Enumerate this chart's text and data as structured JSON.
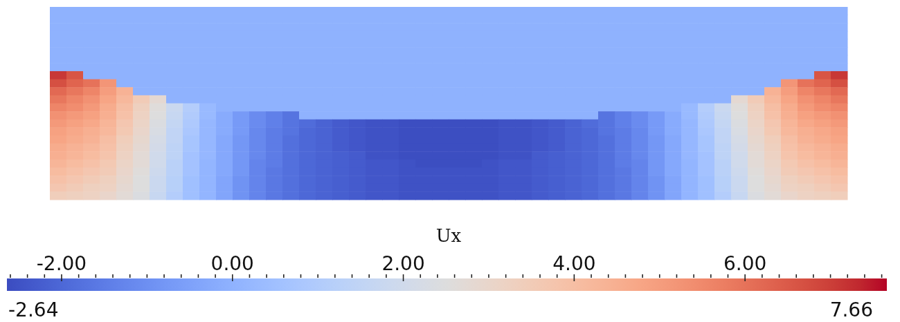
{
  "chart_data": {
    "type": "heatmap",
    "clabel": "Ux",
    "annotations": [
      "-2.64",
      "7.66"
    ],
    "categories": [
      null,
      null,
      null,
      null,
      null,
      null,
      null,
      null,
      null,
      null,
      null,
      null,
      null,
      null,
      null,
      null,
      null,
      null,
      null,
      null,
      null,
      null,
      null,
      null,
      null,
      null,
      null,
      null,
      null,
      null,
      null,
      null,
      null,
      null,
      null,
      null,
      null,
      null,
      null,
      null,
      null,
      null,
      null,
      null,
      null,
      null,
      null,
      null
    ],
    "y_categories": [
      null,
      null,
      null,
      null,
      null,
      null,
      null,
      null,
      null,
      null,
      null,
      null,
      null,
      null,
      null,
      null,
      null,
      null,
      null,
      null,
      null,
      null,
      null,
      null
    ],
    "cells": [
      [
        0,
        0,
        0,
        0,
        0,
        0,
        0,
        0,
        0,
        0,
        0,
        0,
        0,
        0,
        0,
        0,
        0,
        0,
        0,
        0,
        0,
        0,
        0,
        0,
        0,
        0,
        0,
        0,
        0,
        0,
        0,
        0,
        0,
        0,
        0,
        0,
        0,
        0,
        0,
        0,
        0,
        0,
        0,
        0,
        0,
        0,
        0,
        0
      ],
      [
        0,
        0,
        0,
        0,
        0,
        0,
        0,
        0,
        0,
        0,
        0,
        0,
        0,
        0,
        0,
        0,
        0,
        0,
        0,
        0,
        0,
        0,
        0,
        0,
        0,
        0,
        0,
        0,
        0,
        0,
        0,
        0,
        0,
        0,
        0,
        0,
        0,
        0,
        0,
        0,
        0,
        0,
        0,
        0,
        0,
        0,
        0,
        0
      ],
      [
        0,
        0,
        0,
        0,
        0,
        0,
        0,
        0,
        0,
        0,
        0,
        0,
        0,
        0,
        0,
        0,
        0,
        0,
        0,
        0,
        0,
        0,
        0,
        0,
        0,
        0,
        0,
        0,
        0,
        0,
        0,
        0,
        0,
        0,
        0,
        0,
        0,
        0,
        0,
        0,
        0,
        0,
        0,
        0,
        0,
        0,
        0,
        0
      ],
      [
        0,
        0,
        0,
        0,
        0,
        0,
        0,
        0,
        0,
        0,
        0,
        0,
        0,
        0,
        0,
        0,
        0,
        0,
        0,
        0,
        0,
        0,
        0,
        0,
        0,
        0,
        0,
        0,
        0,
        0,
        0,
        0,
        0,
        0,
        0,
        0,
        0,
        0,
        0,
        0,
        0,
        0,
        0,
        0,
        0,
        0,
        0,
        0
      ],
      [
        0,
        0,
        0,
        0,
        0,
        0,
        0,
        0,
        0,
        0,
        0,
        0,
        0,
        0,
        0,
        0,
        0,
        0,
        0,
        0,
        0,
        0,
        0,
        0,
        0,
        0,
        0,
        0,
        0,
        0,
        0,
        0,
        0,
        0,
        0,
        0,
        0,
        0,
        0,
        0,
        0,
        0,
        0,
        0,
        0,
        0,
        0,
        0
      ],
      [
        0,
        0,
        0,
        0,
        0,
        0,
        0,
        0,
        0,
        0,
        0,
        0,
        0,
        0,
        0,
        0,
        0,
        0,
        0,
        0,
        0,
        0,
        0,
        0,
        0,
        0,
        0,
        0,
        0,
        0,
        0,
        0,
        0,
        0,
        0,
        0,
        0,
        0,
        0,
        0,
        0,
        0,
        0,
        0,
        0,
        0,
        0,
        0
      ],
      [
        0,
        0,
        0,
        0,
        0,
        0,
        0,
        0,
        0,
        0,
        0,
        0,
        0,
        0,
        0,
        0,
        0,
        0,
        0,
        0,
        0,
        0,
        0,
        0,
        0,
        0,
        0,
        0,
        0,
        0,
        0,
        0,
        0,
        0,
        0,
        0,
        0,
        0,
        0,
        0,
        0,
        0,
        0,
        0,
        0,
        0,
        0,
        0
      ],
      [
        0,
        0,
        0,
        0,
        0,
        0,
        0,
        0,
        0,
        0,
        0,
        0,
        0,
        0,
        0,
        0,
        0,
        0,
        0,
        0,
        0,
        0,
        0,
        0,
        0,
        0,
        0,
        0,
        0,
        0,
        0,
        0,
        0,
        0,
        0,
        0,
        0,
        0,
        0,
        0,
        0,
        0,
        0,
        0,
        0,
        0,
        0,
        0
      ],
      [
        7.1,
        6.6,
        0,
        0,
        0,
        0,
        0,
        0,
        0,
        0,
        0,
        0,
        0,
        0,
        0,
        0,
        0,
        0,
        0,
        0,
        0,
        0,
        0,
        0,
        0,
        0,
        0,
        0,
        0,
        0,
        0,
        0,
        0,
        0,
        0,
        0,
        0,
        0,
        0,
        0,
        0,
        0,
        0,
        0,
        0,
        0,
        6.6,
        7.1
      ],
      [
        6.7,
        6.3,
        6,
        5.2,
        0,
        0,
        0,
        0,
        0,
        0,
        0,
        0,
        0,
        0,
        0,
        0,
        0,
        0,
        0,
        0,
        0,
        0,
        0,
        0,
        0,
        0,
        0,
        0,
        0,
        0,
        0,
        0,
        0,
        0,
        0,
        0,
        0,
        0,
        0,
        0,
        0,
        0,
        0,
        0,
        5.2,
        6,
        6.3,
        6.7
      ],
      [
        6.2,
        5.9,
        5.6,
        5,
        4.4,
        0,
        0,
        0,
        0,
        0,
        0,
        0,
        0,
        0,
        0,
        0,
        0,
        0,
        0,
        0,
        0,
        0,
        0,
        0,
        0,
        0,
        0,
        0,
        0,
        0,
        0,
        0,
        0,
        0,
        0,
        0,
        0,
        0,
        0,
        0,
        0,
        0,
        0,
        4.4,
        5,
        5.6,
        5.9,
        6.2
      ],
      [
        5.9,
        5.6,
        5.3,
        4.8,
        4.2,
        3.5,
        2.8,
        0,
        0,
        0,
        0,
        0,
        0,
        0,
        0,
        0,
        0,
        0,
        0,
        0,
        0,
        0,
        0,
        0,
        0,
        0,
        0,
        0,
        0,
        0,
        0,
        0,
        0,
        0,
        0,
        0,
        0,
        0,
        0,
        0,
        0,
        2.8,
        3.5,
        4.2,
        4.8,
        5.3,
        5.6,
        5.9
      ],
      [
        5.6,
        5.4,
        5.1,
        4.6,
        4,
        3.3,
        2.6,
        1.8,
        1.1,
        0.3,
        0,
        0,
        0,
        0,
        0,
        0,
        0,
        0,
        0,
        0,
        0,
        0,
        0,
        0,
        0,
        0,
        0,
        0,
        0,
        0,
        0,
        0,
        0,
        0,
        0,
        0,
        0,
        0,
        0.3,
        1.1,
        1.8,
        2.6,
        3.3,
        4,
        4.6,
        5.1,
        5.4,
        5.6
      ],
      [
        5.3,
        5.1,
        4.9,
        4.5,
        3.9,
        3.2,
        2.5,
        1.7,
        1,
        0.3,
        -0.2,
        -0.7,
        -1.1,
        -1.4,
        -1.7,
        0,
        0,
        0,
        0,
        0,
        0,
        0,
        0,
        0,
        0,
        0,
        0,
        0,
        0,
        0,
        0,
        0,
        0,
        -1.7,
        -1.4,
        -1.1,
        -0.7,
        -0.2,
        0.3,
        1,
        1.7,
        2.5,
        3.2,
        3.9,
        4.5,
        4.9,
        5.1,
        5.3
      ],
      [
        5.1,
        4.9,
        4.7,
        4.3,
        3.7,
        3.1,
        2.4,
        1.6,
        0.9,
        0.2,
        -0.2,
        -0.7,
        -1.1,
        -1.4,
        -1.7,
        -1.9,
        -2.1,
        -2.3,
        -2.4,
        -2.5,
        -2.5,
        -2.6,
        -2.6,
        -2.6,
        -2.6,
        -2.6,
        -2.6,
        -2.5,
        -2.5,
        -2.4,
        -2.3,
        -2.1,
        -1.9,
        -1.7,
        -1.4,
        -1.1,
        -0.7,
        -0.2,
        0.2,
        0.9,
        1.6,
        2.4,
        3.1,
        3.7,
        4.3,
        4.7,
        4.9,
        5.1
      ],
      [
        4.9,
        4.7,
        4.5,
        4.2,
        3.6,
        3,
        2.3,
        1.5,
        0.8,
        0.2,
        -0.2,
        -0.7,
        -1.2,
        -1.5,
        -1.7,
        -2,
        -2.1,
        -2.3,
        -2.4,
        -2.5,
        -2.5,
        -2.6,
        -2.6,
        -2.6,
        -2.6,
        -2.6,
        -2.6,
        -2.5,
        -2.5,
        -2.4,
        -2.3,
        -2.1,
        -2,
        -1.7,
        -1.5,
        -1.2,
        -0.7,
        -0.2,
        0.2,
        0.8,
        1.5,
        2.3,
        3,
        3.6,
        4.2,
        4.5,
        4.7,
        4.9
      ],
      [
        4.8,
        4.6,
        4.4,
        4,
        3.4,
        2.9,
        2.2,
        1.5,
        0.7,
        0.2,
        -0.3,
        -0.8,
        -1.2,
        -1.5,
        -1.8,
        -2,
        -2.1,
        -2.3,
        -2.4,
        -2.5,
        -2.5,
        -2.6,
        -2.6,
        -2.6,
        -2.6,
        -2.6,
        -2.6,
        -2.5,
        -2.5,
        -2.4,
        -2.3,
        -2.1,
        -2,
        -1.8,
        -1.5,
        -1.2,
        -0.8,
        -0.3,
        0.2,
        0.7,
        1.5,
        2.2,
        2.9,
        3.4,
        4,
        4.4,
        4.6,
        4.8
      ],
      [
        4.6,
        4.4,
        4.2,
        3.9,
        3.3,
        2.8,
        2.1,
        1.4,
        0.7,
        0.2,
        -0.3,
        -0.8,
        -1.2,
        -1.5,
        -1.8,
        -2,
        -2.1,
        -2.3,
        -2.4,
        -2.5,
        -2.5,
        -2.6,
        -2.6,
        -2.6,
        -2.6,
        -2.6,
        -2.6,
        -2.5,
        -2.5,
        -2.4,
        -2.3,
        -2.1,
        -2,
        -1.8,
        -1.5,
        -1.2,
        -0.8,
        -0.3,
        0.2,
        0.7,
        1.4,
        2.1,
        2.8,
        3.3,
        3.9,
        4.2,
        4.4,
        4.6
      ],
      [
        4.5,
        4.3,
        4.1,
        3.8,
        3.2,
        2.7,
        2,
        1.4,
        0.6,
        0.2,
        -0.3,
        -0.8,
        -1.2,
        -1.5,
        -1.8,
        -2,
        -2.1,
        -2.2,
        -2.3,
        -2.5,
        -2.5,
        -2.6,
        -2.6,
        -2.6,
        -2.6,
        -2.6,
        -2.6,
        -2.5,
        -2.5,
        -2.3,
        -2.2,
        -2.1,
        -2,
        -1.8,
        -1.5,
        -1.2,
        -0.8,
        -0.3,
        0.2,
        0.6,
        1.4,
        2,
        2.7,
        3.2,
        3.8,
        4.1,
        4.3,
        4.5
      ],
      [
        4.3,
        4.1,
        3.9,
        3.6,
        3.1,
        2.7,
        2,
        1.3,
        0.6,
        0.1,
        -0.3,
        -0.8,
        -1.3,
        -1.5,
        -1.8,
        -2,
        -2.1,
        -2.2,
        -2.3,
        -2.4,
        -2.4,
        -2.5,
        -2.6,
        -2.6,
        -2.6,
        -2.6,
        -2.5,
        -2.4,
        -2.4,
        -2.3,
        -2.2,
        -2.1,
        -2,
        -1.8,
        -1.5,
        -1.3,
        -0.8,
        -0.3,
        0.1,
        0.6,
        1.3,
        2,
        2.7,
        3.1,
        3.6,
        3.9,
        4.1,
        4.3
      ],
      [
        4.1,
        3.9,
        3.7,
        3.5,
        3,
        2.6,
        1.9,
        1.3,
        0.6,
        0.1,
        -0.3,
        -0.8,
        -1.3,
        -1.6,
        -1.8,
        -2,
        -2.1,
        -2.2,
        -2.3,
        -2.4,
        -2.4,
        -2.5,
        -2.5,
        -2.5,
        -2.5,
        -2.5,
        -2.5,
        -2.4,
        -2.4,
        -2.3,
        -2.2,
        -2.1,
        -2,
        -1.8,
        -1.6,
        -1.3,
        -0.8,
        -0.3,
        0.1,
        0.6,
        1.3,
        1.9,
        2.6,
        3,
        3.5,
        3.7,
        3.9,
        4.1
      ],
      [
        3.9,
        3.7,
        3.5,
        3.3,
        2.9,
        2.5,
        1.8,
        1.2,
        0.5,
        0.1,
        -0.4,
        -0.9,
        -1.3,
        -1.6,
        -1.8,
        -2,
        -2.1,
        -2.2,
        -2.3,
        -2.4,
        -2.4,
        -2.5,
        -2.5,
        -2.5,
        -2.5,
        -2.5,
        -2.5,
        -2.4,
        -2.4,
        -2.3,
        -2.2,
        -2.1,
        -2,
        -1.8,
        -1.6,
        -1.3,
        -0.9,
        -0.4,
        0.1,
        0.5,
        1.2,
        1.8,
        2.5,
        2.9,
        3.3,
        3.5,
        3.7,
        3.9
      ],
      [
        3.7,
        3.5,
        3.3,
        3.2,
        2.8,
        2.5,
        1.8,
        1.2,
        0.5,
        0.1,
        -0.4,
        -0.9,
        -1.3,
        -1.6,
        -1.8,
        -2,
        -2.1,
        -2.2,
        -2.3,
        -2.4,
        -2.4,
        -2.5,
        -2.5,
        -2.5,
        -2.5,
        -2.5,
        -2.5,
        -2.4,
        -2.4,
        -2.3,
        -2.2,
        -2.1,
        -2,
        -1.8,
        -1.6,
        -1.3,
        -0.9,
        -0.4,
        0.1,
        0.5,
        1.2,
        1.8,
        2.5,
        2.8,
        3.2,
        3.3,
        3.5,
        3.7
      ],
      [
        3.4,
        3.3,
        3.2,
        3,
        2.7,
        2.4,
        1.7,
        1.1,
        0.5,
        0.1,
        -0.4,
        -0.9,
        -1.3,
        -1.6,
        -1.8,
        -2,
        -2.1,
        -2.2,
        -2.3,
        -2.4,
        -2.4,
        -2.5,
        -2.5,
        -2.5,
        -2.5,
        -2.5,
        -2.5,
        -2.4,
        -2.4,
        -2.3,
        -2.2,
        -2.1,
        -2,
        -1.8,
        -1.6,
        -1.3,
        -0.9,
        -0.4,
        0.1,
        0.5,
        1.1,
        1.7,
        2.4,
        2.7,
        3,
        3.2,
        3.3,
        3.4
      ]
    ],
    "clim": [
      -2.64,
      7.66
    ],
    "cticks": [
      {
        "value": -2.6,
        "label": null
      },
      {
        "value": -2.4,
        "label": null
      },
      {
        "value": -2.2,
        "label": null
      },
      {
        "value": -2,
        "label": "-2.00"
      },
      {
        "value": -1.8,
        "label": null
      },
      {
        "value": -1.6,
        "label": null
      },
      {
        "value": -1.4,
        "label": null
      },
      {
        "value": -1.2,
        "label": null
      },
      {
        "value": -1,
        "label": null
      },
      {
        "value": -0.8,
        "label": null
      },
      {
        "value": -0.6,
        "label": null
      },
      {
        "value": -0.4,
        "label": null
      },
      {
        "value": -0.2,
        "label": null
      },
      {
        "value": 0,
        "label": "0.00"
      },
      {
        "value": 0.2,
        "label": null
      },
      {
        "value": 0.4,
        "label": null
      },
      {
        "value": 0.6,
        "label": null
      },
      {
        "value": 0.8,
        "label": null
      },
      {
        "value": 1,
        "label": null
      },
      {
        "value": 1.2,
        "label": null
      },
      {
        "value": 1.4,
        "label": null
      },
      {
        "value": 1.6,
        "label": null
      },
      {
        "value": 1.8,
        "label": null
      },
      {
        "value": 2,
        "label": "2.00"
      },
      {
        "value": 2.2,
        "label": null
      },
      {
        "value": 2.4,
        "label": null
      },
      {
        "value": 2.6,
        "label": null
      },
      {
        "value": 2.8,
        "label": null
      },
      {
        "value": 3,
        "label": null
      },
      {
        "value": 3.2,
        "label": null
      },
      {
        "value": 3.4,
        "label": null
      },
      {
        "value": 3.6,
        "label": null
      },
      {
        "value": 3.8,
        "label": null
      },
      {
        "value": 4,
        "label": "4.00"
      },
      {
        "value": 4.2,
        "label": null
      },
      {
        "value": 4.4,
        "label": null
      },
      {
        "value": 4.6,
        "label": null
      },
      {
        "value": 4.8,
        "label": null
      },
      {
        "value": 5,
        "label": null
      },
      {
        "value": 5.2,
        "label": null
      },
      {
        "value": 5.4,
        "label": null
      },
      {
        "value": 5.6,
        "label": null
      },
      {
        "value": 5.8,
        "label": null
      },
      {
        "value": 6,
        "label": "6.00"
      },
      {
        "value": 6.2,
        "label": null
      },
      {
        "value": 6.4,
        "label": null
      },
      {
        "value": 6.6,
        "label": null
      },
      {
        "value": 6.8,
        "label": null
      },
      {
        "value": 7,
        "label": null
      },
      {
        "value": 7.2,
        "label": null
      },
      {
        "value": 7.4,
        "label": null
      },
      {
        "value": 7.6,
        "label": null
      }
    ]
  }
}
